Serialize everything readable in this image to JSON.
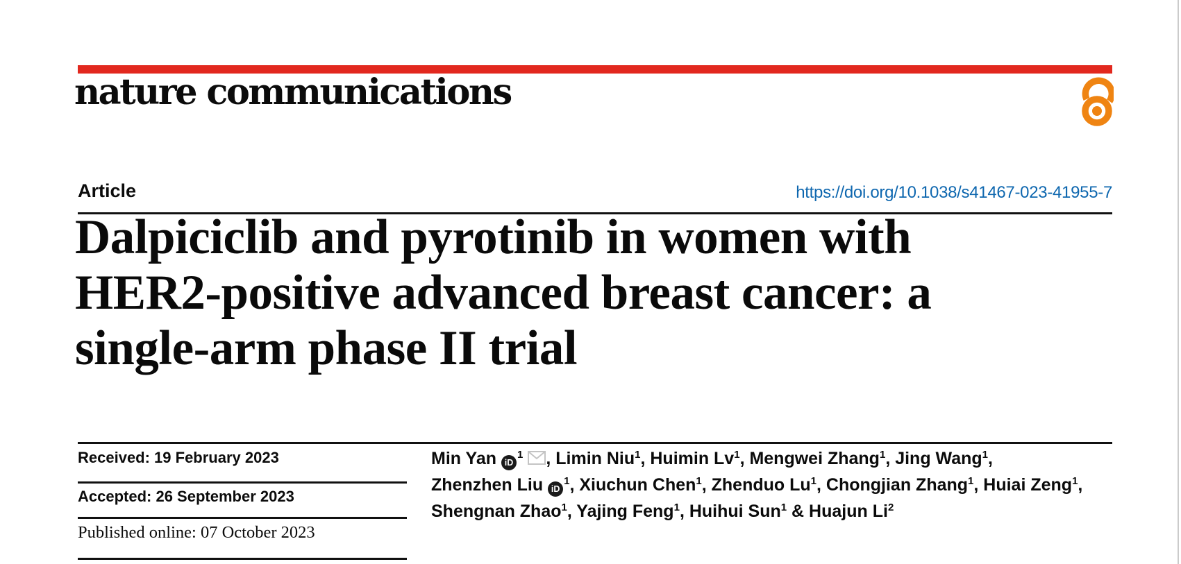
{
  "theme": {
    "brand_red": "#e2281e",
    "link_blue": "#0e67af",
    "open_access_orange": "#ef8412"
  },
  "masthead": {
    "journal": "nature communications",
    "open_access_icon": "open-lock-icon"
  },
  "article": {
    "label": "Article",
    "doi": "https://doi.org/10.1038/s41467-023-41955-7"
  },
  "title": {
    "lines": [
      "Dalpiciclib and pyrotinib in women with",
      "HER2-positive advanced breast cancer: a",
      "single-arm phase II trial"
    ]
  },
  "dates": {
    "received": "Received: 19 February 2023",
    "accepted": "Accepted: 26 September 2023",
    "published": "Published online: 07 October 2023"
  },
  "authors": {
    "orcid_label": "iD",
    "lines": [
      [
        {
          "kind": "text",
          "text": "Min Yan"
        },
        {
          "kind": "orcid"
        },
        {
          "kind": "sup",
          "text": "1"
        },
        {
          "kind": "mail"
        },
        {
          "kind": "text",
          "text": ", Limin Niu"
        },
        {
          "kind": "sup",
          "text": "1"
        },
        {
          "kind": "text",
          "text": ", Huimin Lv"
        },
        {
          "kind": "sup",
          "text": "1"
        },
        {
          "kind": "text",
          "text": ", Mengwei Zhang"
        },
        {
          "kind": "sup",
          "text": "1"
        },
        {
          "kind": "text",
          "text": ", Jing Wang"
        },
        {
          "kind": "sup",
          "text": "1"
        },
        {
          "kind": "text",
          "text": ","
        }
      ],
      [
        {
          "kind": "text",
          "text": "Zhenzhen Liu"
        },
        {
          "kind": "orcid"
        },
        {
          "kind": "sup",
          "text": "1"
        },
        {
          "kind": "text",
          "text": ", Xiuchun Chen"
        },
        {
          "kind": "sup",
          "text": "1"
        },
        {
          "kind": "text",
          "text": ", Zhenduo Lu"
        },
        {
          "kind": "sup",
          "text": "1"
        },
        {
          "kind": "text",
          "text": ", Chongjian Zhang"
        },
        {
          "kind": "sup",
          "text": "1"
        },
        {
          "kind": "text",
          "text": ", Huiai Zeng"
        },
        {
          "kind": "sup",
          "text": "1"
        },
        {
          "kind": "text",
          "text": ","
        }
      ],
      [
        {
          "kind": "text",
          "text": "Shengnan Zhao"
        },
        {
          "kind": "sup",
          "text": "1"
        },
        {
          "kind": "text",
          "text": ", Yajing Feng"
        },
        {
          "kind": "sup",
          "text": "1"
        },
        {
          "kind": "text",
          "text": ", Huihui Sun"
        },
        {
          "kind": "sup",
          "text": "1"
        },
        {
          "kind": "text",
          "text": " & Huajun Li"
        },
        {
          "kind": "sup",
          "text": "2"
        }
      ]
    ]
  }
}
